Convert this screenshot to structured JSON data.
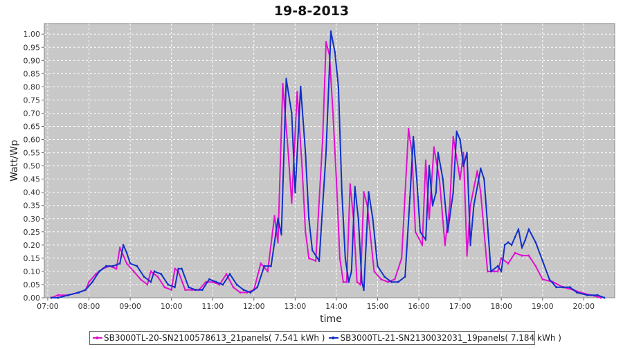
{
  "chart_data": {
    "type": "line",
    "title": "19-8-2013",
    "xlabel": "time",
    "ylabel": "Watt/Wp",
    "xlim": [
      "06:55",
      "20:45"
    ],
    "ylim": [
      0,
      1.04
    ],
    "y_ticks": [
      "0.00",
      "0.05",
      "0.10",
      "0.15",
      "0.20",
      "0.25",
      "0.30",
      "0.35",
      "0.40",
      "0.45",
      "0.50",
      "0.55",
      "0.60",
      "0.65",
      "0.70",
      "0.75",
      "0.80",
      "0.85",
      "0.90",
      "0.95",
      "1.00"
    ],
    "x_ticks": [
      "07:00",
      "08:00",
      "09:00",
      "10:00",
      "11:00",
      "12:00",
      "13:00",
      "14:00",
      "15:00",
      "16:00",
      "17:00",
      "18:00",
      "19:00",
      "20:00"
    ],
    "grid": true,
    "legend_position": "bottom",
    "series": [
      {
        "name": "SB3000TL-20-SN2100578613_21panels( 7.541 kWh )",
        "color": "#e010d0",
        "points": [
          [
            "07:05",
            0.0
          ],
          [
            "07:15",
            0.01
          ],
          [
            "07:30",
            0.01
          ],
          [
            "07:45",
            0.02
          ],
          [
            "07:55",
            0.03
          ],
          [
            "08:00",
            0.06
          ],
          [
            "08:10",
            0.09
          ],
          [
            "08:20",
            0.11
          ],
          [
            "08:30",
            0.12
          ],
          [
            "08:40",
            0.11
          ],
          [
            "08:45",
            0.19
          ],
          [
            "08:50",
            0.16
          ],
          [
            "08:55",
            0.13
          ],
          [
            "09:05",
            0.1
          ],
          [
            "09:15",
            0.07
          ],
          [
            "09:25",
            0.05
          ],
          [
            "09:30",
            0.1
          ],
          [
            "09:40",
            0.08
          ],
          [
            "09:50",
            0.04
          ],
          [
            "10:00",
            0.03
          ],
          [
            "10:05",
            0.11
          ],
          [
            "10:10",
            0.1
          ],
          [
            "10:20",
            0.03
          ],
          [
            "10:30",
            0.03
          ],
          [
            "10:40",
            0.03
          ],
          [
            "10:50",
            0.06
          ],
          [
            "11:00",
            0.06
          ],
          [
            "11:10",
            0.05
          ],
          [
            "11:20",
            0.09
          ],
          [
            "11:30",
            0.04
          ],
          [
            "11:40",
            0.02
          ],
          [
            "11:50",
            0.02
          ],
          [
            "12:00",
            0.03
          ],
          [
            "12:10",
            0.13
          ],
          [
            "12:20",
            0.1
          ],
          [
            "12:30",
            0.31
          ],
          [
            "12:35",
            0.21
          ],
          [
            "12:42",
            0.81
          ],
          [
            "12:50",
            0.55
          ],
          [
            "12:55",
            0.36
          ],
          [
            "13:03",
            0.78
          ],
          [
            "13:10",
            0.5
          ],
          [
            "13:15",
            0.25
          ],
          [
            "13:20",
            0.15
          ],
          [
            "13:30",
            0.14
          ],
          [
            "13:40",
            0.6
          ],
          [
            "13:45",
            0.97
          ],
          [
            "13:50",
            0.92
          ],
          [
            "13:55",
            0.7
          ],
          [
            "14:00",
            0.45
          ],
          [
            "14:05",
            0.15
          ],
          [
            "14:10",
            0.06
          ],
          [
            "14:15",
            0.06
          ],
          [
            "14:20",
            0.43
          ],
          [
            "14:25",
            0.3
          ],
          [
            "14:30",
            0.06
          ],
          [
            "14:35",
            0.05
          ],
          [
            "14:40",
            0.4
          ],
          [
            "14:45",
            0.35
          ],
          [
            "14:55",
            0.1
          ],
          [
            "15:05",
            0.07
          ],
          [
            "15:15",
            0.06
          ],
          [
            "15:25",
            0.07
          ],
          [
            "15:35",
            0.15
          ],
          [
            "15:45",
            0.64
          ],
          [
            "15:50",
            0.55
          ],
          [
            "15:55",
            0.25
          ],
          [
            "16:05",
            0.2
          ],
          [
            "16:10",
            0.52
          ],
          [
            "16:15",
            0.3
          ],
          [
            "16:22",
            0.57
          ],
          [
            "16:30",
            0.45
          ],
          [
            "16:38",
            0.2
          ],
          [
            "16:45",
            0.35
          ],
          [
            "16:50",
            0.61
          ],
          [
            "17:00",
            0.45
          ],
          [
            "17:05",
            0.55
          ],
          [
            "17:10",
            0.16
          ],
          [
            "17:15",
            0.35
          ],
          [
            "17:25",
            0.48
          ],
          [
            "17:30",
            0.4
          ],
          [
            "17:40",
            0.1
          ],
          [
            "17:50",
            0.1
          ],
          [
            "17:55",
            0.1
          ],
          [
            "18:00",
            0.15
          ],
          [
            "18:10",
            0.13
          ],
          [
            "18:20",
            0.17
          ],
          [
            "18:30",
            0.16
          ],
          [
            "18:40",
            0.16
          ],
          [
            "18:50",
            0.12
          ],
          [
            "19:00",
            0.07
          ],
          [
            "19:15",
            0.06
          ],
          [
            "19:30",
            0.04
          ],
          [
            "19:45",
            0.03
          ],
          [
            "19:55",
            0.02
          ],
          [
            "20:10",
            0.01
          ],
          [
            "20:25",
            0.0
          ]
        ]
      },
      {
        "name": "SB3000TL-21-SN2130032031_19panels( 7.184 kWh )",
        "color": "#1030c8",
        "points": [
          [
            "07:05",
            0.0
          ],
          [
            "07:15",
            0.0
          ],
          [
            "07:30",
            0.01
          ],
          [
            "07:45",
            0.02
          ],
          [
            "07:55",
            0.03
          ],
          [
            "08:05",
            0.06
          ],
          [
            "08:15",
            0.1
          ],
          [
            "08:25",
            0.12
          ],
          [
            "08:35",
            0.12
          ],
          [
            "08:45",
            0.13
          ],
          [
            "08:50",
            0.2
          ],
          [
            "08:55",
            0.17
          ],
          [
            "09:00",
            0.13
          ],
          [
            "09:10",
            0.12
          ],
          [
            "09:20",
            0.08
          ],
          [
            "09:30",
            0.06
          ],
          [
            "09:35",
            0.1
          ],
          [
            "09:45",
            0.09
          ],
          [
            "09:55",
            0.05
          ],
          [
            "10:05",
            0.04
          ],
          [
            "10:10",
            0.11
          ],
          [
            "10:15",
            0.11
          ],
          [
            "10:25",
            0.04
          ],
          [
            "10:35",
            0.03
          ],
          [
            "10:45",
            0.03
          ],
          [
            "10:55",
            0.07
          ],
          [
            "11:05",
            0.06
          ],
          [
            "11:15",
            0.05
          ],
          [
            "11:25",
            0.09
          ],
          [
            "11:35",
            0.05
          ],
          [
            "11:45",
            0.03
          ],
          [
            "11:55",
            0.02
          ],
          [
            "12:05",
            0.04
          ],
          [
            "12:15",
            0.12
          ],
          [
            "12:25",
            0.12
          ],
          [
            "12:35",
            0.3
          ],
          [
            "12:40",
            0.24
          ],
          [
            "12:47",
            0.83
          ],
          [
            "12:55",
            0.7
          ],
          [
            "13:00",
            0.4
          ],
          [
            "13:08",
            0.8
          ],
          [
            "13:15",
            0.55
          ],
          [
            "13:20",
            0.3
          ],
          [
            "13:25",
            0.18
          ],
          [
            "13:35",
            0.14
          ],
          [
            "13:45",
            0.55
          ],
          [
            "13:52",
            1.01
          ],
          [
            "13:58",
            0.93
          ],
          [
            "14:03",
            0.8
          ],
          [
            "14:08",
            0.4
          ],
          [
            "14:13",
            0.15
          ],
          [
            "14:18",
            0.06
          ],
          [
            "14:22",
            0.1
          ],
          [
            "14:27",
            0.42
          ],
          [
            "14:32",
            0.3
          ],
          [
            "14:37",
            0.06
          ],
          [
            "14:40",
            0.03
          ],
          [
            "14:47",
            0.4
          ],
          [
            "14:53",
            0.3
          ],
          [
            "15:00",
            0.12
          ],
          [
            "15:10",
            0.08
          ],
          [
            "15:20",
            0.06
          ],
          [
            "15:30",
            0.06
          ],
          [
            "15:40",
            0.08
          ],
          [
            "15:47",
            0.38
          ],
          [
            "15:52",
            0.61
          ],
          [
            "15:57",
            0.45
          ],
          [
            "16:02",
            0.25
          ],
          [
            "16:10",
            0.22
          ],
          [
            "16:15",
            0.5
          ],
          [
            "16:20",
            0.35
          ],
          [
            "16:25",
            0.4
          ],
          [
            "16:28",
            0.55
          ],
          [
            "16:35",
            0.45
          ],
          [
            "16:42",
            0.25
          ],
          [
            "16:50",
            0.4
          ],
          [
            "16:55",
            0.63
          ],
          [
            "17:00",
            0.6
          ],
          [
            "17:05",
            0.5
          ],
          [
            "17:10",
            0.55
          ],
          [
            "17:15",
            0.2
          ],
          [
            "17:20",
            0.35
          ],
          [
            "17:30",
            0.49
          ],
          [
            "17:35",
            0.45
          ],
          [
            "17:45",
            0.1
          ],
          [
            "17:55",
            0.12
          ],
          [
            "18:00",
            0.1
          ],
          [
            "18:05",
            0.2
          ],
          [
            "18:10",
            0.21
          ],
          [
            "18:15",
            0.2
          ],
          [
            "18:20",
            0.23
          ],
          [
            "18:25",
            0.26
          ],
          [
            "18:30",
            0.19
          ],
          [
            "18:35",
            0.22
          ],
          [
            "18:40",
            0.26
          ],
          [
            "18:50",
            0.21
          ],
          [
            "19:00",
            0.14
          ],
          [
            "19:10",
            0.07
          ],
          [
            "19:20",
            0.04
          ],
          [
            "19:30",
            0.04
          ],
          [
            "19:40",
            0.04
          ],
          [
            "19:50",
            0.02
          ],
          [
            "20:05",
            0.01
          ],
          [
            "20:20",
            0.01
          ],
          [
            "20:30",
            0.0
          ]
        ]
      }
    ]
  }
}
